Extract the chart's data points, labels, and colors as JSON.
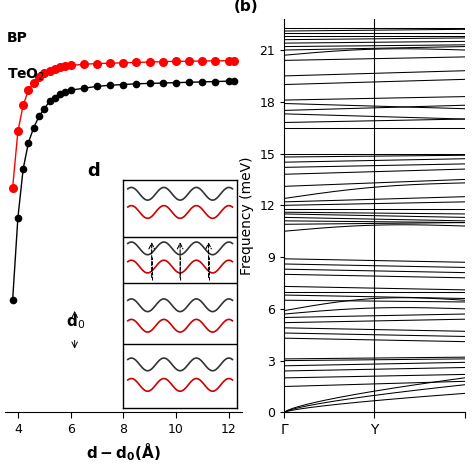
{
  "title_b": "(b)",
  "ylabel_b": "Frequency (meV)",
  "xticklabels_b": [
    "Γ",
    "Y"
  ],
  "yticks_b": [
    0,
    3,
    6,
    9,
    12,
    15,
    18,
    21
  ],
  "ylim_b": [
    0,
    22.8
  ],
  "label_a_BP": "BP",
  "label_a_TeO2": "TeO₂",
  "xlabel_a": "d-d₀(Å)",
  "xlim_a": [
    3.5,
    12.5
  ],
  "xticks_a": [
    4,
    6,
    8,
    10,
    12
  ],
  "bg_color": "#ffffff",
  "line_color": "#000000",
  "red_color": "#ff0000",
  "x_data": [
    3.8,
    4.0,
    4.2,
    4.4,
    4.6,
    4.8,
    5.0,
    5.2,
    5.4,
    5.6,
    5.8,
    6.0,
    6.5,
    7.0,
    7.5,
    8.0,
    8.5,
    9.0,
    9.5,
    10.0,
    10.5,
    11.0,
    11.5,
    12.0,
    12.2
  ],
  "y_black_rel": [
    0.3,
    0.52,
    0.65,
    0.72,
    0.76,
    0.79,
    0.81,
    0.83,
    0.84,
    0.85,
    0.855,
    0.86,
    0.865,
    0.87,
    0.873,
    0.875,
    0.877,
    0.878,
    0.879,
    0.88,
    0.881,
    0.882,
    0.883,
    0.884,
    0.885
  ],
  "y_red_rel": [
    0.6,
    0.75,
    0.82,
    0.86,
    0.88,
    0.895,
    0.905,
    0.912,
    0.917,
    0.921,
    0.924,
    0.926,
    0.929,
    0.931,
    0.932,
    0.933,
    0.934,
    0.935,
    0.936,
    0.937,
    0.937,
    0.938,
    0.938,
    0.939,
    0.939
  ]
}
